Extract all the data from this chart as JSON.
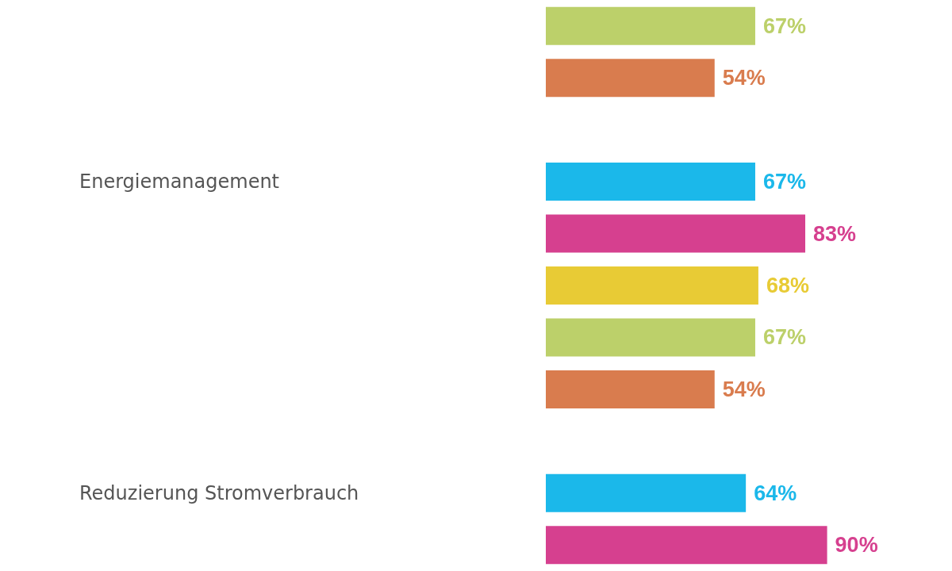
{
  "chart_data": {
    "type": "bar",
    "orientation": "horizontal",
    "categories": [
      null,
      null,
      null,
      "Energiemanagement",
      null,
      null,
      null,
      null,
      null,
      "Reduzierung Stromverbrauch",
      null
    ],
    "values": [
      67,
      54,
      null,
      67,
      83,
      68,
      67,
      54,
      null,
      64,
      90
    ],
    "colors": [
      "#bcd06a",
      "#d97c4e",
      null,
      "#1bb8ea",
      "#d6408f",
      "#e8cb35",
      "#bcd06a",
      "#d97c4e",
      null,
      "#1bb8ea",
      "#d6408f"
    ],
    "value_labels": [
      "67%",
      "54%",
      null,
      "67%",
      "83%",
      "68%",
      "67%",
      "54%",
      null,
      "64%",
      "90%"
    ],
    "tick_labels": "y"
  }
}
